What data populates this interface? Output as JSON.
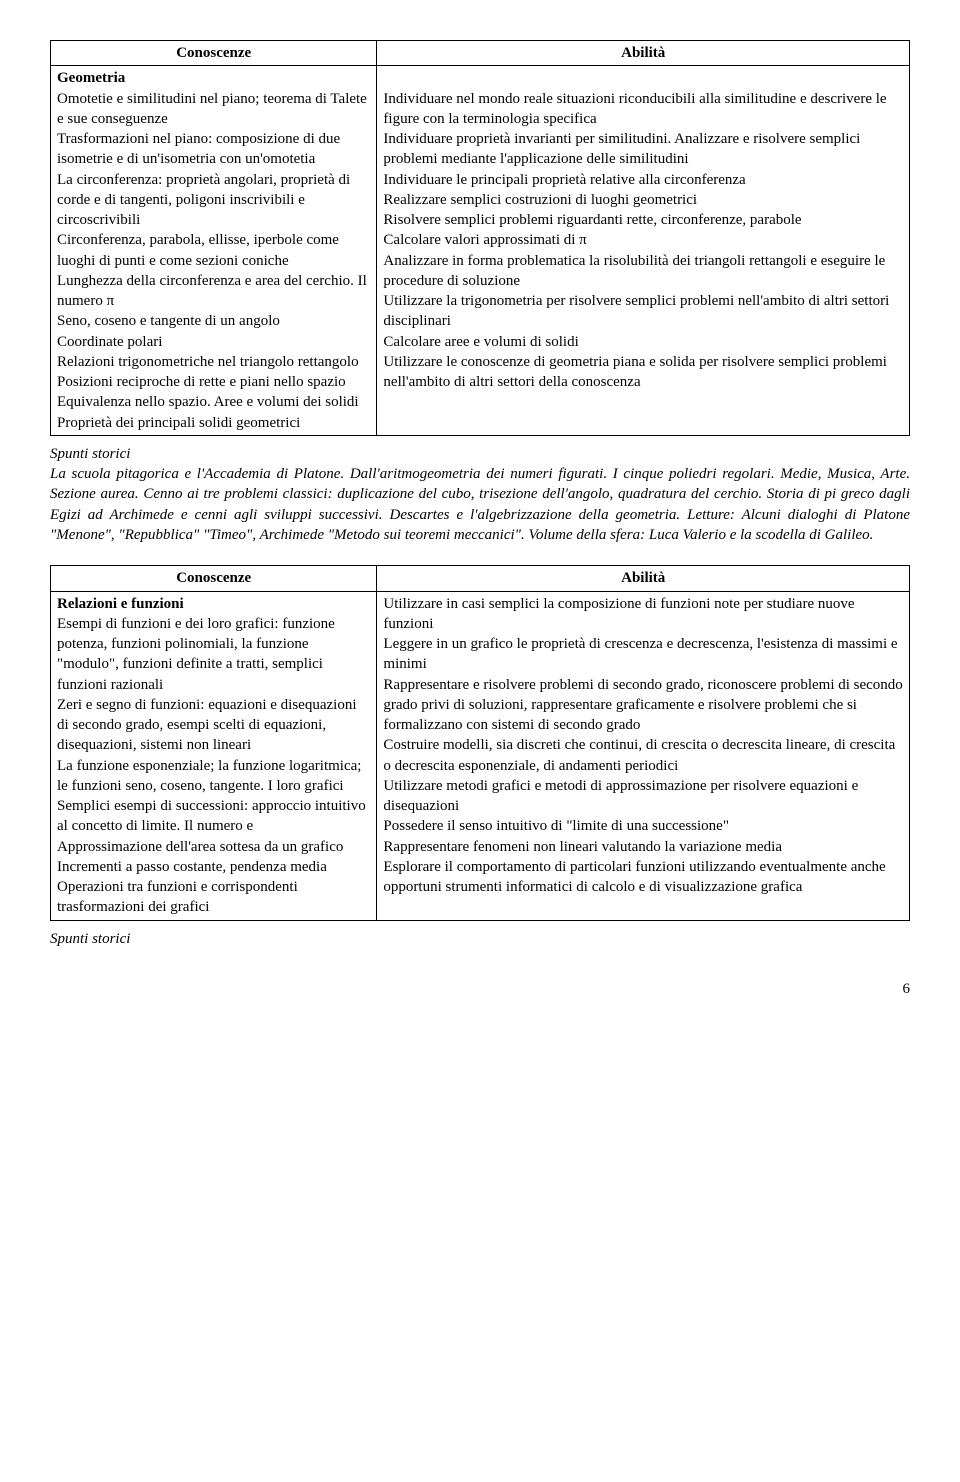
{
  "table1": {
    "header_left": "Conoscenze",
    "header_right": "Abilità",
    "left_title": "Geometria",
    "left_body": "Omotetie e similitudini nel piano; teorema di Talete e sue conseguenze\nTrasformazioni nel piano: composizione di due isometrie e di un'isometria con un'omotetia\nLa circonferenza: proprietà angolari, proprietà di corde e di tangenti, poligoni inscrivibili e circoscrivibili\nCirconferenza, parabola, ellisse, iperbole come luoghi di punti e come sezioni coniche\nLunghezza della circonferenza e area del cerchio. Il numero π\nSeno, coseno e tangente di un angolo\nCoordinate polari\nRelazioni trigonometriche nel triangolo rettangolo\nPosizioni reciproche di rette e piani nello spazio\nEquivalenza nello spazio. Aree e volumi dei solidi\nProprietà dei principali solidi geometrici",
    "right_body": "Individuare nel mondo reale situazioni riconducibili alla similitudine e descrivere le figure con la terminologia specifica\nIndividuare proprietà invarianti per similitudini. Analizzare e risolvere semplici problemi mediante l'applicazione delle similitudini\nIndividuare le principali proprietà relative alla circonferenza\nRealizzare semplici costruzioni di luoghi geometrici\nRisolvere semplici problemi riguardanti rette, circonferenze, parabole\nCalcolare valori approssimati di π\nAnalizzare in forma problematica la risolubilità dei triangoli rettangoli e eseguire le procedure di soluzione\nUtilizzare la trigonometria per risolvere semplici problemi nell'ambito di altri settori disciplinari\nCalcolare aree e volumi di solidi\nUtilizzare le conoscenze di geometria piana e solida per risolvere semplici problemi nell'ambito di altri settori della conoscenza"
  },
  "spunti1_label": "Spunti storici",
  "spunti1_body": "La scuola pitagorica e l'Accademia di Platone. Dall'aritmogeometria dei numeri figurati. I cinque poliedri regolari. Medie, Musica, Arte. Sezione aurea. Cenno ai tre problemi classici: duplicazione del cubo, trisezione dell'angolo, quadratura del cerchio. Storia di pi greco dagli Egizi ad Archimede e cenni agli sviluppi successivi. Descartes e l'algebrizzazione della geometria. Letture: Alcuni dialoghi di Platone \"Menone\", \"Repubblica\" \"Timeo\", Archimede \"Metodo sui teoremi meccanici\". Volume della sfera: Luca Valerio e la scodella di Galileo.",
  "table2": {
    "header_left": "Conoscenze",
    "header_right": "Abilità",
    "left_title": "Relazioni e funzioni",
    "left_body": "Esempi di funzioni e dei loro grafici: funzione potenza, funzioni polinomiali, la funzione \"modulo\", funzioni definite a tratti, semplici funzioni razionali\nZeri e segno di funzioni: equazioni e disequazioni di secondo grado, esempi scelti di equazioni, disequazioni, sistemi non lineari\nLa funzione esponenziale; la funzione logaritmica; le funzioni seno, coseno, tangente. I loro grafici\nSemplici esempi di successioni: approccio intuitivo al concetto di limite. Il numero e\nApprossimazione dell'area sottesa da un grafico\nIncrementi a passo costante, pendenza media\nOperazioni tra funzioni e corrispondenti trasformazioni dei grafici",
    "right_body": "Utilizzare in casi semplici la composizione di funzioni note per studiare nuove funzioni\nLeggere in un grafico le proprietà di crescenza e decrescenza, l'esistenza di massimi e minimi\nRappresentare e risolvere problemi di secondo grado, riconoscere problemi di secondo grado privi di soluzioni, rappresentare graficamente e risolvere problemi che si formalizzano con sistemi di secondo grado\nCostruire modelli, sia discreti che continui, di crescita o decrescita lineare, di crescita o decrescita esponenziale, di andamenti periodici\nUtilizzare metodi grafici e metodi di approssimazione per risolvere equazioni e disequazioni\nPossedere il senso intuitivo di \"limite di una successione\"\nRappresentare fenomeni non lineari valutando la variazione media\nEsplorare il comportamento di particolari funzioni utilizzando eventualmente anche opportuni strumenti informatici di calcolo e di visualizzazione grafica"
  },
  "spunti2_label": "Spunti storici",
  "page_number": "6"
}
